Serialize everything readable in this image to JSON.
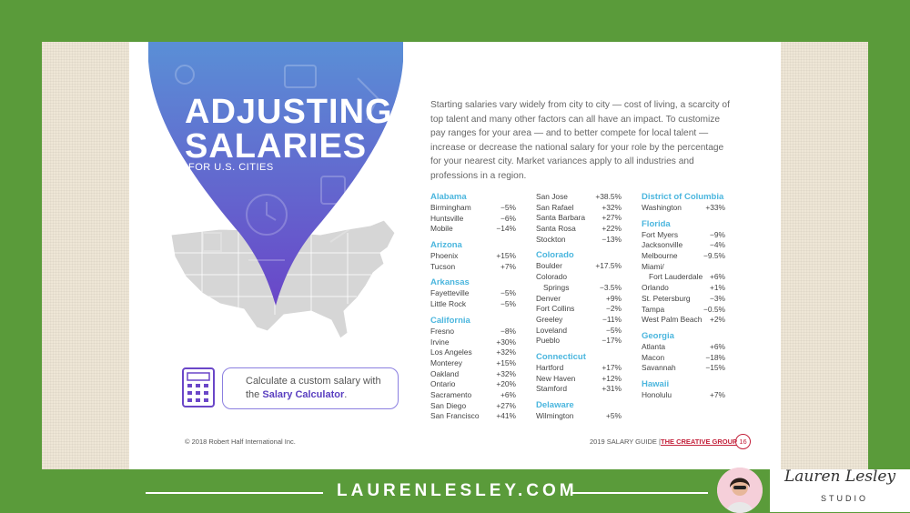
{
  "header": {
    "title_line1": "ADJUSTING",
    "title_line2": "SALARIES",
    "subtitle": "FOR U.S. CITIES"
  },
  "intro": "Starting salaries vary widely from city to city — cost of living, a scarcity of top talent and many other factors can all have an impact. To customize pay ranges for your area — and to better compete for local talent — increase or decrease the national salary for your role by the percentage for your nearest city. Market variances apply to all industries and professions in a region.",
  "calculator": {
    "line1": "Calculate a custom salary with",
    "line2_prefix": "the ",
    "line2_link": "Salary Calculator",
    "line2_suffix": "."
  },
  "footer": {
    "copyright": "© 2018 Robert Half International Inc.",
    "guide": "2019 SALARY GUIDE |",
    "brand": "THE CREATIVE GROUP",
    "page": "16"
  },
  "site": {
    "url": "LAURENLESLEY.COM",
    "logo_script": "Lauren Lesley",
    "logo_studio": "STUDIO"
  },
  "col1": [
    {
      "state": "Alabama",
      "cities": [
        [
          "Birmingham",
          "−5%"
        ],
        [
          "Huntsville",
          "−6%"
        ],
        [
          "Mobile",
          "−14%"
        ]
      ]
    },
    {
      "state": "Arizona",
      "cities": [
        [
          "Phoenix",
          "+15%"
        ],
        [
          "Tucson",
          "+7%"
        ]
      ]
    },
    {
      "state": "Arkansas",
      "cities": [
        [
          "Fayetteville",
          "−5%"
        ],
        [
          "Little Rock",
          "−5%"
        ]
      ]
    },
    {
      "state": "California",
      "cities": [
        [
          "Fresno",
          "−8%"
        ],
        [
          "Irvine",
          "+30%"
        ],
        [
          "Los Angeles",
          "+32%"
        ],
        [
          "Monterey",
          "+15%"
        ],
        [
          "Oakland",
          "+32%"
        ],
        [
          "Ontario",
          "+20%"
        ],
        [
          "Sacramento",
          "+6%"
        ],
        [
          "San Diego",
          "+27%"
        ],
        [
          "San Francisco",
          "+41%"
        ]
      ]
    }
  ],
  "col2": [
    {
      "state": "",
      "cities": [
        [
          "San Jose",
          "+38.5%"
        ],
        [
          "San Rafael",
          "+32%"
        ],
        [
          "Santa Barbara",
          "+27%"
        ],
        [
          "Santa Rosa",
          "+22%"
        ],
        [
          "Stockton",
          "−13%"
        ]
      ]
    },
    {
      "state": "Colorado",
      "cities": [
        [
          "Boulder",
          "+17.5%"
        ],
        [
          "Colorado",
          ""
        ],
        [
          "  Springs",
          "−3.5%"
        ],
        [
          "Denver",
          "+9%"
        ],
        [
          "Fort Collins",
          "−2%"
        ],
        [
          "Greeley",
          "−11%"
        ],
        [
          "Loveland",
          "−5%"
        ],
        [
          "Pueblo",
          "−17%"
        ]
      ]
    },
    {
      "state": "Connecticut",
      "cities": [
        [
          "Hartford",
          "+17%"
        ],
        [
          "New Haven",
          "+12%"
        ],
        [
          "Stamford",
          "+31%"
        ]
      ]
    },
    {
      "state": "Delaware",
      "cities": [
        [
          "Wilmington",
          "+5%"
        ]
      ]
    }
  ],
  "col3": [
    {
      "state": "District of Columbia",
      "cities": [
        [
          "Washington",
          "+33%"
        ]
      ]
    },
    {
      "state": "Florida",
      "cities": [
        [
          "Fort Myers",
          "−9%"
        ],
        [
          "Jacksonville",
          "−4%"
        ],
        [
          "Melbourne",
          "−9.5%"
        ],
        [
          "Miami/",
          ""
        ],
        [
          "  Fort Lauderdale",
          "+6%"
        ],
        [
          "Orlando",
          "+1%"
        ],
        [
          "St. Petersburg",
          "−3%"
        ],
        [
          "Tampa",
          "−0.5%"
        ],
        [
          "West Palm Beach",
          "+2%"
        ]
      ]
    },
    {
      "state": "Georgia",
      "cities": [
        [
          "Atlanta",
          "+6%"
        ],
        [
          "Macon",
          "−18%"
        ],
        [
          "Savannah",
          "−15%"
        ]
      ]
    },
    {
      "state": "Hawaii",
      "cities": [
        [
          "Honolulu",
          "+7%"
        ]
      ]
    }
  ],
  "colors": {
    "accent_blue": "#4bb6de",
    "pin_top": "#5a8fd6",
    "pin_bottom": "#6a46c8",
    "frame_green": "#5a9b3a",
    "brand_red": "#c3203a"
  }
}
